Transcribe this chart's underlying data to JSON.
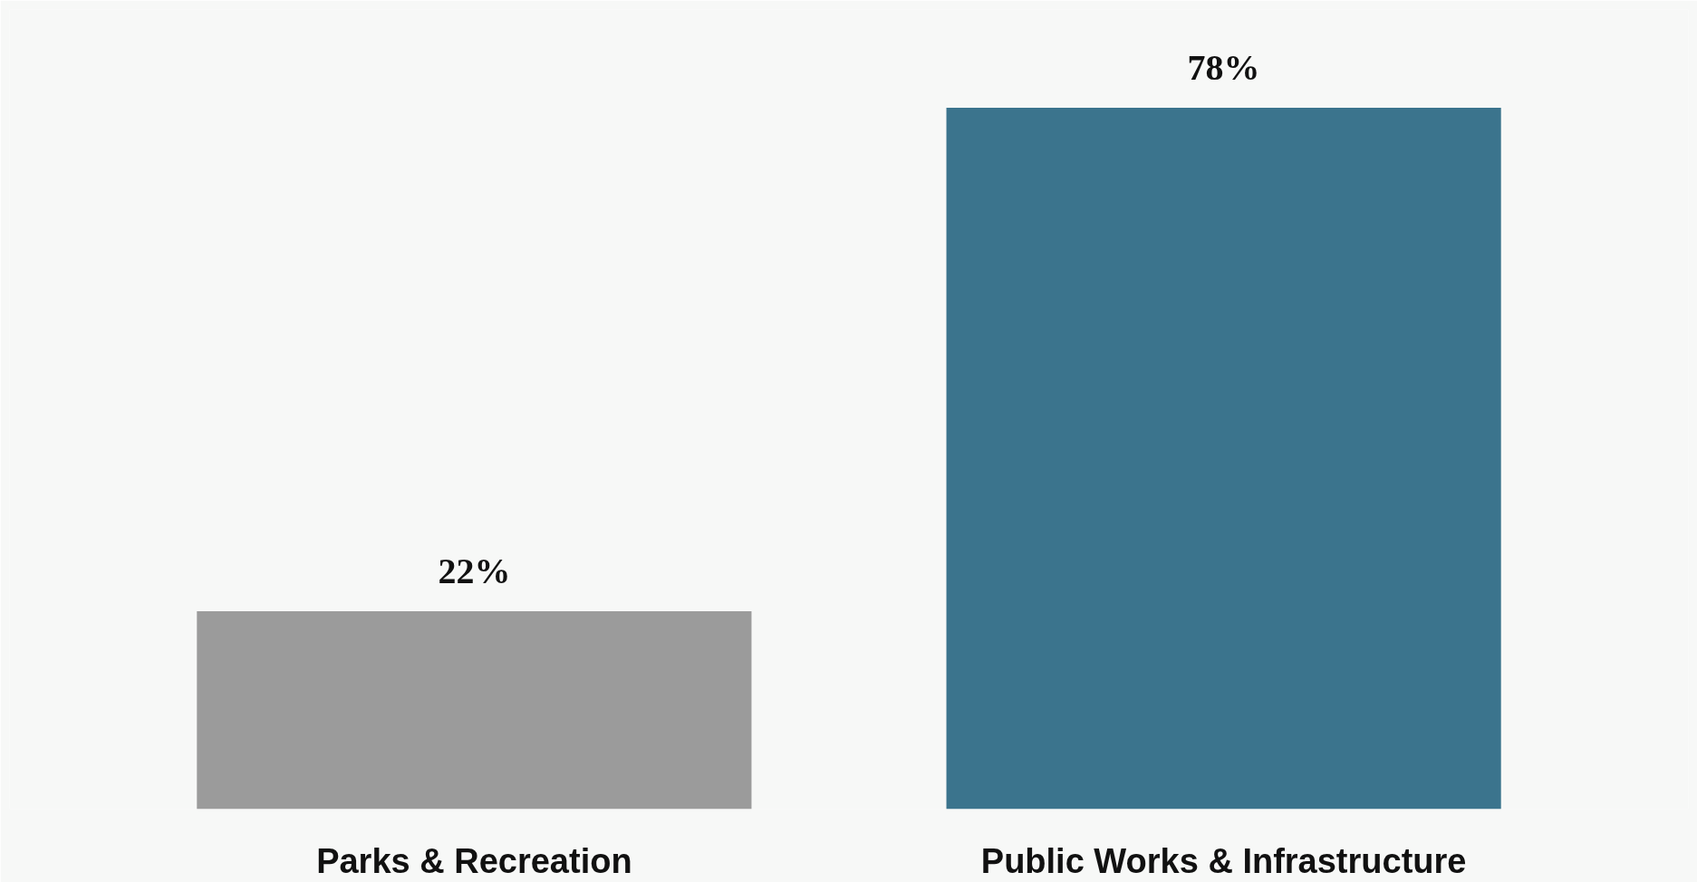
{
  "chart_data": {
    "type": "bar",
    "categories": [
      "Parks & Recreation",
      "Public Works & Infrastructure"
    ],
    "values": [
      22,
      78
    ],
    "colors": [
      "#9b9b9b",
      "#3b748d"
    ],
    "value_labels": [
      "22%",
      "78%"
    ]
  }
}
